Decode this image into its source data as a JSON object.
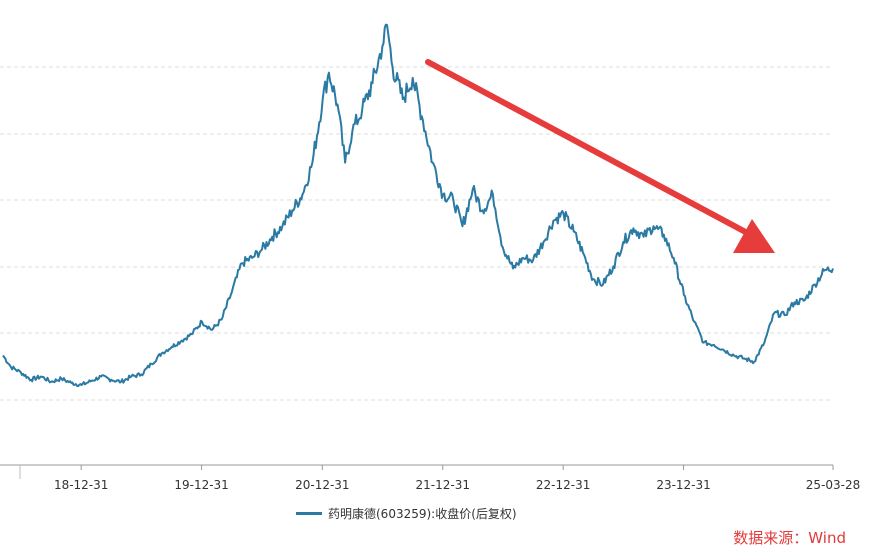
{
  "chart_data": {
    "type": "line",
    "title": "",
    "xlabel": "",
    "ylabel": "",
    "x_ticks": [
      "18-12-31",
      "19-12-31",
      "20-12-31",
      "21-12-31",
      "22-12-31",
      "23-12-31",
      "25-03-28"
    ],
    "x_range": [
      "2018-05-08",
      "2025-03-28"
    ],
    "grid": "horizontal dashed",
    "series": [
      {
        "name": "药明康德(603259):收盘价(后复权)",
        "color": "#2a7aa3",
        "points": [
          [
            "2018-05-08",
            58
          ],
          [
            "2018-06-01",
            47
          ],
          [
            "2018-07-01",
            42
          ],
          [
            "2018-08-01",
            35
          ],
          [
            "2018-09-01",
            38
          ],
          [
            "2018-10-01",
            33
          ],
          [
            "2018-11-01",
            36
          ],
          [
            "2018-12-01",
            32
          ],
          [
            "2019-01-01",
            30
          ],
          [
            "2019-02-01",
            34
          ],
          [
            "2019-03-01",
            38
          ],
          [
            "2019-04-01",
            35
          ],
          [
            "2019-05-01",
            33
          ],
          [
            "2019-06-01",
            38
          ],
          [
            "2019-07-01",
            40
          ],
          [
            "2019-08-01",
            50
          ],
          [
            "2019-09-01",
            60
          ],
          [
            "2019-10-01",
            66
          ],
          [
            "2019-11-01",
            72
          ],
          [
            "2019-12-01",
            78
          ],
          [
            "2020-01-01",
            90
          ],
          [
            "2020-02-01",
            82
          ],
          [
            "2020-03-01",
            92
          ],
          [
            "2020-04-01",
            118
          ],
          [
            "2020-05-01",
            145
          ],
          [
            "2020-06-01",
            150
          ],
          [
            "2020-07-01",
            158
          ],
          [
            "2020-08-01",
            170
          ],
          [
            "2020-09-01",
            180
          ],
          [
            "2020-10-01",
            195
          ],
          [
            "2020-11-01",
            210
          ],
          [
            "2020-12-01",
            240
          ],
          [
            "2021-01-01",
            300
          ],
          [
            "2021-01-20",
            325
          ],
          [
            "2021-02-15",
            295
          ],
          [
            "2021-03-10",
            240
          ],
          [
            "2021-04-01",
            270
          ],
          [
            "2021-05-01",
            290
          ],
          [
            "2021-06-01",
            315
          ],
          [
            "2021-07-01",
            350
          ],
          [
            "2021-07-15",
            370
          ],
          [
            "2021-08-01",
            330
          ],
          [
            "2021-09-01",
            300
          ],
          [
            "2021-10-01",
            320
          ],
          [
            "2021-11-01",
            280
          ],
          [
            "2021-12-01",
            240
          ],
          [
            "2022-01-01",
            210
          ],
          [
            "2022-02-01",
            205
          ],
          [
            "2022-03-01",
            180
          ],
          [
            "2022-04-01",
            215
          ],
          [
            "2022-05-01",
            195
          ],
          [
            "2022-06-01",
            210
          ],
          [
            "2022-07-01",
            160
          ],
          [
            "2022-08-01",
            140
          ],
          [
            "2022-09-01",
            150
          ],
          [
            "2022-10-01",
            148
          ],
          [
            "2022-11-01",
            165
          ],
          [
            "2022-12-01",
            185
          ],
          [
            "2023-01-01",
            192
          ],
          [
            "2023-02-01",
            175
          ],
          [
            "2023-03-01",
            155
          ],
          [
            "2023-04-01",
            130
          ],
          [
            "2023-05-01",
            125
          ],
          [
            "2023-06-01",
            142
          ],
          [
            "2023-07-01",
            165
          ],
          [
            "2023-08-01",
            178
          ],
          [
            "2023-09-01",
            170
          ],
          [
            "2023-10-01",
            180
          ],
          [
            "2023-11-01",
            172
          ],
          [
            "2023-12-01",
            150
          ],
          [
            "2024-01-01",
            115
          ],
          [
            "2024-02-01",
            90
          ],
          [
            "2024-03-01",
            70
          ],
          [
            "2024-04-01",
            68
          ],
          [
            "2024-05-01",
            63
          ],
          [
            "2024-06-01",
            58
          ],
          [
            "2024-07-01",
            55
          ],
          [
            "2024-08-01",
            52
          ],
          [
            "2024-09-01",
            70
          ],
          [
            "2024-10-01",
            98
          ],
          [
            "2024-11-01",
            96
          ],
          [
            "2024-12-01",
            108
          ],
          [
            "2025-01-01",
            110
          ],
          [
            "2025-02-01",
            125
          ],
          [
            "2025-03-01",
            138
          ],
          [
            "2025-03-28",
            140
          ]
        ]
      }
    ]
  },
  "legend_label": "药明康德(603259):收盘价(后复权)",
  "source_label": "数据来源：Wind",
  "colors": {
    "line": "#2a7aa3",
    "arrow": "#e63c3c",
    "grid": "#dddddd",
    "axis": "#aaaaaa"
  }
}
